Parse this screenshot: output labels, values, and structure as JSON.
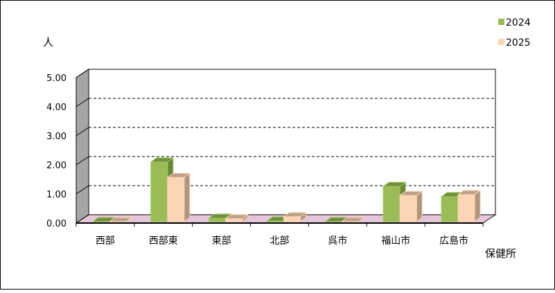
{
  "chart_data": {
    "type": "bar",
    "title": "",
    "ylabel": "人",
    "xlabel": "保健所",
    "categories": [
      "西部",
      "西部東",
      "東部",
      "北部",
      "呉市",
      "福山市",
      "広島市"
    ],
    "series": [
      {
        "name": "2024",
        "values": [
          0.0,
          2.05,
          0.12,
          0.02,
          0.0,
          1.21,
          0.86
        ],
        "color": "#9BBB59"
      },
      {
        "name": "2025",
        "values": [
          0.0,
          1.52,
          0.1,
          0.17,
          0.0,
          0.9,
          0.93
        ],
        "color": "#FCD5B4"
      }
    ],
    "ylim": [
      0,
      5
    ],
    "yticks": [
      "0.00",
      "1.00",
      "2.00",
      "3.00",
      "4.00",
      "5.00"
    ],
    "grid": true,
    "legend": "top-right",
    "floor_color": "#E6C6DA",
    "wall_color": "#A6A6A6"
  }
}
